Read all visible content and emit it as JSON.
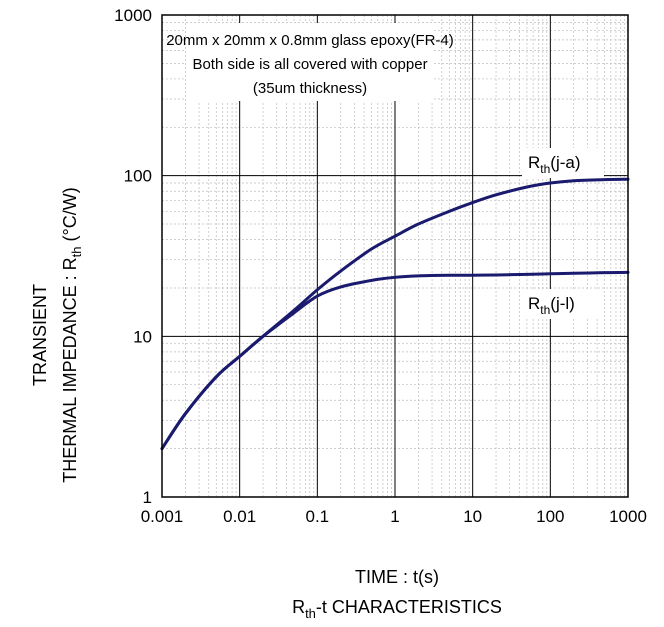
{
  "chart_data": {
    "type": "line",
    "x_scale": "log",
    "y_scale": "log",
    "xlim": [
      0.001,
      1000
    ],
    "ylim": [
      1,
      1000
    ],
    "xticks": [
      "0.001",
      "0.01",
      "0.1",
      "1",
      "10",
      "100",
      "1000"
    ],
    "yticks": [
      "1",
      "10",
      "100",
      "1000"
    ],
    "xlabel": "TIME : t(s)",
    "ylabel_line1": "TRANSIENT",
    "ylabel_line2_main": "THERMAL IMPEDANCE : R",
    "ylabel_line2_sub": "th",
    "ylabel_line2_unit": " (°C/W)",
    "caption_main": "R",
    "caption_sub": "th",
    "caption_rest": "-t CHARACTERISTICS",
    "note": [
      "20mm x 20mm x 0.8mm glass epoxy(FR-4)",
      "Both side is all covered with copper",
      "(35um thickness)"
    ],
    "grid": true,
    "line_color": "#1a1a6e",
    "series": [
      {
        "name": "Rth(j-a)",
        "label_main": "R",
        "label_sub": "th",
        "label_rest": "(j-a)",
        "x": [
          0.001,
          0.002,
          0.005,
          0.01,
          0.02,
          0.05,
          0.1,
          0.2,
          0.5,
          1,
          2,
          5,
          10,
          20,
          50,
          100,
          200,
          500,
          1000
        ],
        "y": [
          2.0,
          3.3,
          5.6,
          7.5,
          10.0,
          14.5,
          19.5,
          25.5,
          35.0,
          42.0,
          50.0,
          60.0,
          68.0,
          76.0,
          85.0,
          90.0,
          93.0,
          94.5,
          95.0
        ]
      },
      {
        "name": "Rth(j-l)",
        "label_main": "R",
        "label_sub": "th",
        "label_rest": "(j-l)",
        "x": [
          0.001,
          0.002,
          0.005,
          0.01,
          0.02,
          0.05,
          0.1,
          0.2,
          0.5,
          1,
          2,
          5,
          10,
          20,
          50,
          100,
          200,
          500,
          1000
        ],
        "y": [
          2.0,
          3.3,
          5.6,
          7.5,
          10.0,
          14.0,
          17.8,
          20.3,
          22.3,
          23.3,
          23.8,
          24.0,
          24.0,
          24.1,
          24.3,
          24.5,
          24.7,
          24.9,
          25.0
        ]
      }
    ]
  }
}
